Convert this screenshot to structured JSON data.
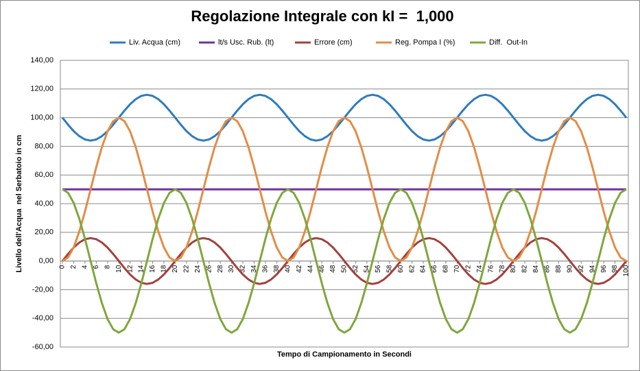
{
  "chart_data": {
    "type": "line",
    "title": "Regolazione Integrale con kI =  1,000",
    "x_label": "Tempo di Campionamento in Secondi",
    "y_label": "Livello dell'Acqua  nel Serbatoio in cm",
    "categories": [
      0,
      null,
      2,
      null,
      4,
      null,
      6,
      null,
      8,
      null,
      10,
      null,
      12,
      null,
      14,
      null,
      16,
      null,
      18,
      null,
      20,
      null,
      22,
      null,
      24,
      null,
      26,
      null,
      28,
      null,
      30,
      null,
      32,
      null,
      34,
      null,
      36,
      null,
      38,
      null,
      40,
      null,
      42,
      null,
      44,
      null,
      46,
      null,
      48,
      null,
      50,
      null,
      52,
      null,
      54,
      null,
      56,
      null,
      58,
      null,
      60,
      null,
      62,
      null,
      64,
      null,
      66,
      null,
      68,
      null,
      70,
      null,
      72,
      null,
      74,
      null,
      76,
      null,
      78,
      null,
      80,
      null,
      82,
      null,
      84,
      null,
      86,
      null,
      88,
      null,
      90,
      null,
      92,
      null,
      94,
      null,
      96,
      null,
      98,
      null,
      100
    ],
    "ylim": [
      -60,
      140
    ],
    "yticks": [
      {
        "value": -60,
        "label": "-60,00"
      },
      {
        "value": -40,
        "label": "-40,00"
      },
      {
        "value": -20,
        "label": "-20,00"
      },
      {
        "value": 0,
        "label": "0,00"
      },
      {
        "value": 20,
        "label": "20,00"
      },
      {
        "value": 40,
        "label": "40,00"
      },
      {
        "value": 60,
        "label": "60,00"
      },
      {
        "value": 80,
        "label": "80,00"
      },
      {
        "value": 100,
        "label": "100,00"
      },
      {
        "value": 120,
        "label": "120,00"
      },
      {
        "value": 140,
        "label": "140,00"
      }
    ],
    "grid": true,
    "legend": "top",
    "series": [
      {
        "name": "Liv. Acqua (cm)",
        "color": "#2c7bc0",
        "values": [
          100,
          95.1,
          90.6,
          87.1,
          84.8,
          84,
          84.8,
          87.1,
          90.6,
          95.1,
          100,
          104.9,
          109.4,
          112.9,
          115.2,
          116,
          115.2,
          112.9,
          109.4,
          104.9,
          100,
          95.1,
          90.6,
          87.1,
          84.8,
          84,
          84.8,
          87.1,
          90.6,
          95.1,
          100,
          104.9,
          109.4,
          112.9,
          115.2,
          116,
          115.2,
          112.9,
          109.4,
          104.9,
          100,
          95.1,
          90.6,
          87.1,
          84.8,
          84,
          84.8,
          87.1,
          90.6,
          95.1,
          100,
          104.9,
          109.4,
          112.9,
          115.2,
          116,
          115.2,
          112.9,
          109.4,
          104.9,
          100,
          95.1,
          90.6,
          87.1,
          84.8,
          84,
          84.8,
          87.1,
          90.6,
          95.1,
          100,
          104.9,
          109.4,
          112.9,
          115.2,
          116,
          115.2,
          112.9,
          109.4,
          104.9,
          100,
          95.1,
          90.6,
          87.1,
          84.8,
          84,
          84.8,
          87.1,
          90.6,
          95.1,
          100,
          104.9,
          109.4,
          112.9,
          115.2,
          116,
          115.2,
          112.9,
          109.4,
          104.9,
          100
        ]
      },
      {
        "name": "lt/s Usc. Rub. (lt)",
        "color": "#7030a0",
        "values": [
          50,
          50,
          50,
          50,
          50,
          50,
          50,
          50,
          50,
          50,
          50,
          50,
          50,
          50,
          50,
          50,
          50,
          50,
          50,
          50,
          50,
          50,
          50,
          50,
          50,
          50,
          50,
          50,
          50,
          50,
          50,
          50,
          50,
          50,
          50,
          50,
          50,
          50,
          50,
          50,
          50,
          50,
          50,
          50,
          50,
          50,
          50,
          50,
          50,
          50,
          50,
          50,
          50,
          50,
          50,
          50,
          50,
          50,
          50,
          50,
          50,
          50,
          50,
          50,
          50,
          50,
          50,
          50,
          50,
          50,
          50,
          50,
          50,
          50,
          50,
          50,
          50,
          50,
          50,
          50,
          50,
          50,
          50,
          50,
          50,
          50,
          50,
          50,
          50,
          50,
          50,
          50,
          50,
          50,
          50,
          50,
          50,
          50,
          50,
          50,
          50
        ]
      },
      {
        "name": "Errore (cm)",
        "color": "#a3403d",
        "values": [
          0,
          4.9,
          9.4,
          12.9,
          15.2,
          16,
          15.2,
          12.9,
          9.4,
          4.9,
          0,
          -4.9,
          -9.4,
          -12.9,
          -15.2,
          -16,
          -15.2,
          -12.9,
          -9.4,
          -4.9,
          0,
          4.9,
          9.4,
          12.9,
          15.2,
          16,
          15.2,
          12.9,
          9.4,
          4.9,
          0,
          -4.9,
          -9.4,
          -12.9,
          -15.2,
          -16,
          -15.2,
          -12.9,
          -9.4,
          -4.9,
          0,
          4.9,
          9.4,
          12.9,
          15.2,
          16,
          15.2,
          12.9,
          9.4,
          4.9,
          0,
          -4.9,
          -9.4,
          -12.9,
          -15.2,
          -16,
          -15.2,
          -12.9,
          -9.4,
          -4.9,
          0,
          4.9,
          9.4,
          12.9,
          15.2,
          16,
          15.2,
          12.9,
          9.4,
          4.9,
          0,
          -4.9,
          -9.4,
          -12.9,
          -15.2,
          -16,
          -15.2,
          -12.9,
          -9.4,
          -4.9,
          0,
          4.9,
          9.4,
          12.9,
          15.2,
          16,
          15.2,
          12.9,
          9.4,
          4.9,
          0,
          -4.9,
          -9.4,
          -12.9,
          -15.2,
          -16,
          -15.2,
          -12.9,
          -9.4,
          -4.9,
          0
        ]
      },
      {
        "name": "Reg. Pompa I (%)",
        "color": "#e38c44",
        "values": [
          0,
          2.4,
          9.5,
          20.6,
          34.5,
          50,
          65.5,
          79.4,
          90.5,
          97.6,
          100,
          97.6,
          90.5,
          79.4,
          65.5,
          50,
          34.5,
          20.6,
          9.5,
          2.4,
          0,
          2.4,
          9.5,
          20.6,
          34.5,
          50,
          65.5,
          79.4,
          90.5,
          97.6,
          100,
          97.6,
          90.5,
          79.4,
          65.5,
          50,
          34.5,
          20.6,
          9.5,
          2.4,
          0,
          2.4,
          9.5,
          20.6,
          34.5,
          50,
          65.5,
          79.4,
          90.5,
          97.6,
          100,
          97.6,
          90.5,
          79.4,
          65.5,
          50,
          34.5,
          20.6,
          9.5,
          2.4,
          0,
          2.4,
          9.5,
          20.6,
          34.5,
          50,
          65.5,
          79.4,
          90.5,
          97.6,
          100,
          97.6,
          90.5,
          79.4,
          65.5,
          50,
          34.5,
          20.6,
          9.5,
          2.4,
          0,
          2.4,
          9.5,
          20.6,
          34.5,
          50,
          65.5,
          79.4,
          90.5,
          97.6,
          100,
          97.6,
          90.5,
          79.4,
          65.5,
          50,
          34.5,
          20.6,
          9.5,
          2.4,
          0
        ]
      },
      {
        "name": "Diff.  Out-In",
        "color": "#7ea73b",
        "values": [
          50,
          47.6,
          40.5,
          29.4,
          15.5,
          0,
          -15.5,
          -29.4,
          -40.5,
          -47.6,
          -50,
          -47.6,
          -40.5,
          -29.4,
          -15.5,
          0,
          15.5,
          29.4,
          40.5,
          47.6,
          50,
          47.6,
          40.5,
          29.4,
          15.5,
          0,
          -15.5,
          -29.4,
          -40.5,
          -47.6,
          -50,
          -47.6,
          -40.5,
          -29.4,
          -15.5,
          0,
          15.5,
          29.4,
          40.5,
          47.6,
          50,
          47.6,
          40.5,
          29.4,
          15.5,
          0,
          -15.5,
          -29.4,
          -40.5,
          -47.6,
          -50,
          -47.6,
          -40.5,
          -29.4,
          -15.5,
          0,
          15.5,
          29.4,
          40.5,
          47.6,
          50,
          47.6,
          40.5,
          29.4,
          15.5,
          0,
          -15.5,
          -29.4,
          -40.5,
          -47.6,
          -50,
          -47.6,
          -40.5,
          -29.4,
          -15.5,
          0,
          15.5,
          29.4,
          40.5,
          47.6,
          50,
          47.6,
          40.5,
          29.4,
          15.5,
          0,
          -15.5,
          -29.4,
          -40.5,
          -47.6,
          -50,
          -47.6,
          -40.5,
          -29.4,
          -15.5,
          0,
          15.5,
          29.4,
          40.5,
          47.6,
          50
        ]
      }
    ]
  }
}
